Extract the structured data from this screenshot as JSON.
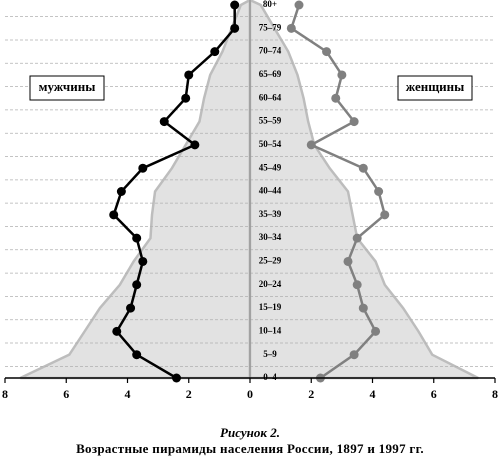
{
  "chart_data": {
    "type": "pyramid",
    "title": "Рисунок 2.",
    "caption": "Возрастные пирамиды населения России, 1897 и 1997 гг.",
    "categories": [
      "0–4",
      "5–9",
      "10–14",
      "15–19",
      "20–24",
      "25–29",
      "30–34",
      "35–39",
      "40–44",
      "45–49",
      "50–54",
      "55–59",
      "60–64",
      "65–69",
      "70–74",
      "75–79",
      "80+"
    ],
    "side_labels": {
      "left": "мужчины",
      "right": "женщины"
    },
    "xlim": [
      0,
      8
    ],
    "xticks": [
      0,
      2,
      4,
      6,
      8
    ],
    "grid": true,
    "series": [
      {
        "side": "left",
        "style": "area",
        "color": "#e2e2e2",
        "values": [
          7.5,
          5.9,
          5.4,
          4.9,
          4.25,
          3.8,
          3.25,
          3.2,
          3.1,
          2.55,
          2.1,
          1.65,
          1.5,
          1.3,
          0.9,
          0.6,
          0.3
        ]
      },
      {
        "side": "right",
        "style": "area",
        "color": "#e2e2e2",
        "values": [
          7.45,
          5.95,
          5.5,
          5.0,
          4.4,
          4.1,
          3.5,
          3.35,
          3.2,
          2.6,
          2.1,
          1.9,
          1.75,
          1.55,
          1.25,
          0.8,
          0.35
        ]
      },
      {
        "side": "left",
        "style": "line",
        "color": "#000000",
        "values": [
          2.4,
          3.7,
          4.35,
          3.9,
          3.7,
          3.5,
          3.7,
          4.45,
          4.2,
          3.5,
          1.8,
          2.8,
          2.1,
          2.0,
          1.15,
          0.5,
          0.5
        ]
      },
      {
        "side": "right",
        "style": "line",
        "color": "#808080",
        "values": [
          2.3,
          3.4,
          4.1,
          3.7,
          3.5,
          3.2,
          3.5,
          4.4,
          4.2,
          3.7,
          2.0,
          3.4,
          2.8,
          3.0,
          2.5,
          1.35,
          1.6
        ]
      }
    ]
  }
}
